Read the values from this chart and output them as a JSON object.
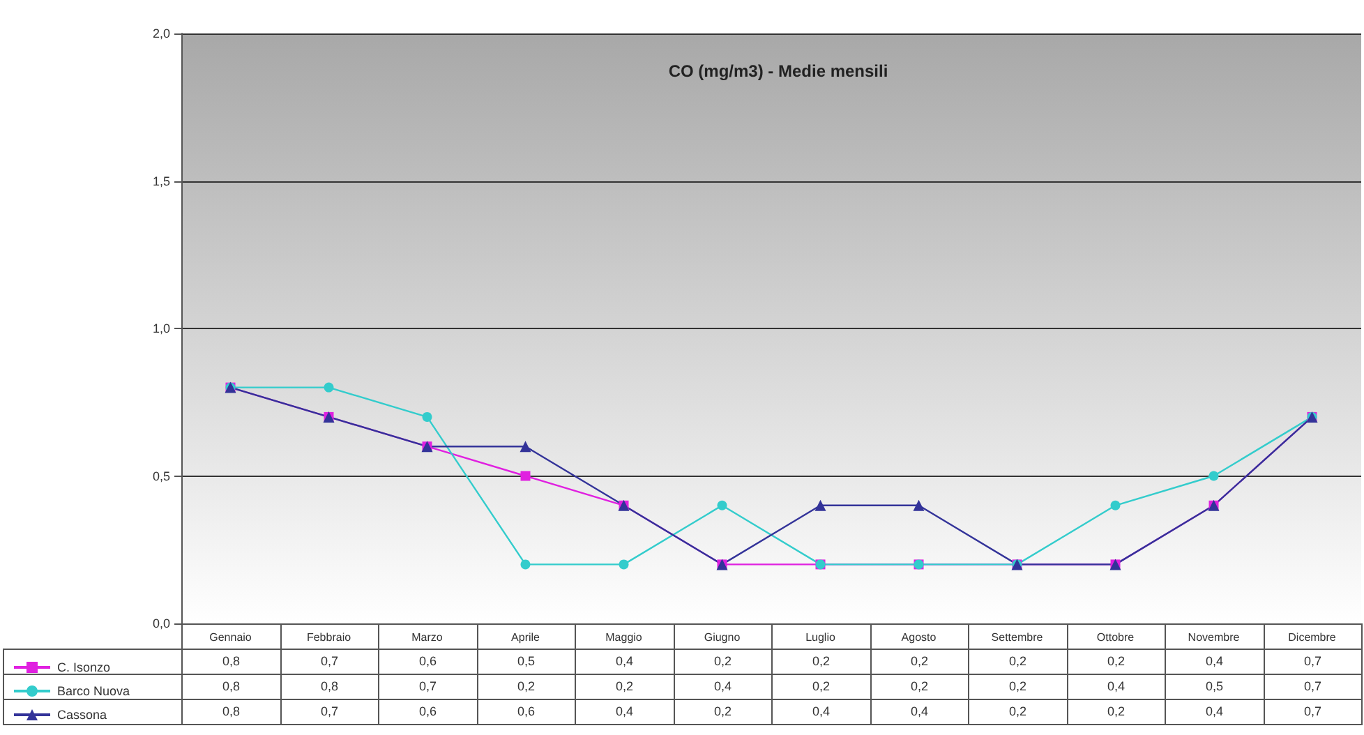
{
  "chart_data": {
    "type": "line",
    "title": "CO (mg/m3) - Medie mensili",
    "categories": [
      "Gennaio",
      "Febbraio",
      "Marzo",
      "Aprile",
      "Maggio",
      "Giugno",
      "Luglio",
      "Agosto",
      "Settembre",
      "Ottobre",
      "Novembre",
      "Dicembre"
    ],
    "series": [
      {
        "name": "C. Isonzo",
        "color": "#e020e0",
        "marker": "square",
        "values": [
          0.8,
          0.7,
          0.6,
          0.5,
          0.4,
          0.2,
          0.2,
          0.2,
          0.2,
          0.2,
          0.4,
          0.7
        ],
        "value_labels": [
          "0,8",
          "0,7",
          "0,6",
          "0,5",
          "0,4",
          "0,2",
          "0,2",
          "0,2",
          "0,2",
          "0,2",
          "0,4",
          "0,7"
        ]
      },
      {
        "name": "Barco Nuova",
        "color": "#33cccc",
        "marker": "circle",
        "values": [
          0.8,
          0.8,
          0.7,
          0.2,
          0.2,
          0.4,
          0.2,
          0.2,
          0.2,
          0.4,
          0.5,
          0.7
        ],
        "value_labels": [
          "0,8",
          "0,8",
          "0,7",
          "0,2",
          "0,2",
          "0,4",
          "0,2",
          "0,2",
          "0,2",
          "0,4",
          "0,5",
          "0,7"
        ]
      },
      {
        "name": "Cassona",
        "color": "#333399",
        "marker": "triangle",
        "values": [
          0.8,
          0.7,
          0.6,
          0.6,
          0.4,
          0.2,
          0.4,
          0.4,
          0.2,
          0.2,
          0.4,
          0.7
        ],
        "value_labels": [
          "0,8",
          "0,7",
          "0,6",
          "0,6",
          "0,4",
          "0,2",
          "0,4",
          "0,4",
          "0,2",
          "0,2",
          "0,4",
          "0,7"
        ]
      }
    ],
    "ylim": [
      0,
      2
    ],
    "yticks": [
      {
        "value": 0,
        "label": "0,0"
      },
      {
        "value": 0.5,
        "label": "0,5"
      },
      {
        "value": 1,
        "label": "1,0"
      },
      {
        "value": 1.5,
        "label": "1,5"
      },
      {
        "value": 2,
        "label": "2,0"
      }
    ],
    "grid": "y",
    "legend": "bottom left",
    "line_style": "solid"
  }
}
